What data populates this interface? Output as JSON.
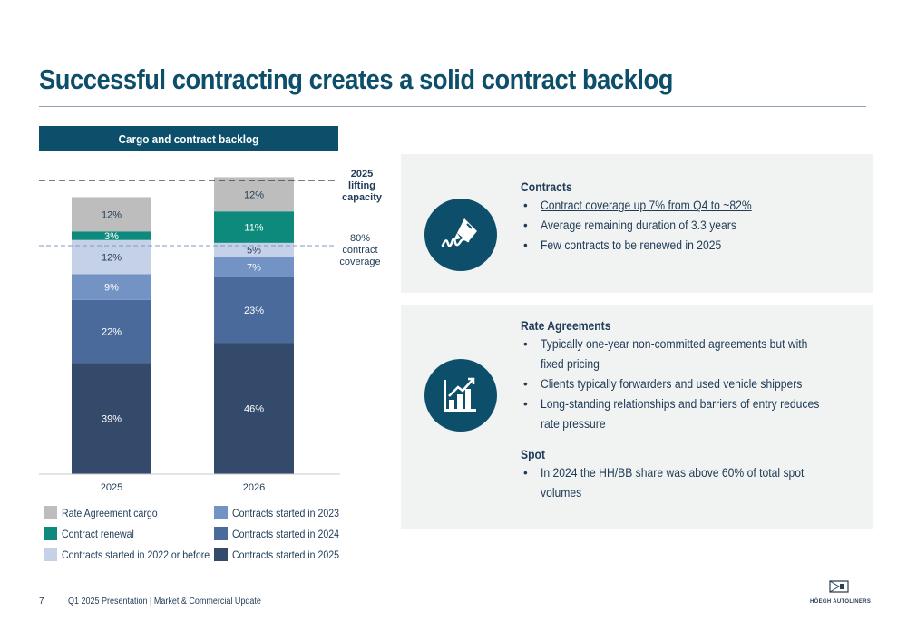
{
  "title": "Successful contracting creates a solid contract backlog",
  "chart_header": "Cargo and contract backlog",
  "annotations": {
    "lifting": [
      "2025",
      "lifting",
      "capacity"
    ],
    "coverage": [
      "80%",
      "contract",
      "coverage"
    ]
  },
  "chart_data": {
    "type": "bar",
    "stacked": true,
    "categories": [
      "2025",
      "2026"
    ],
    "series": [
      {
        "name": "Contracts started in 2025",
        "color": "#344a6b",
        "values": [
          39,
          46
        ]
      },
      {
        "name": "Contracts started in 2024",
        "color": "#4a6a9c",
        "values": [
          22,
          23
        ]
      },
      {
        "name": "Contracts started in 2023",
        "color": "#7393c4",
        "values": [
          9,
          7
        ]
      },
      {
        "name": "Contracts started in 2022 or before",
        "color": "#c4d1e6",
        "values": [
          12,
          5
        ]
      },
      {
        "name": "Contract renewal",
        "color": "#0d8a7c",
        "values": [
          3,
          11
        ]
      },
      {
        "name": "Rate Agreement cargo",
        "color": "#bdbdbd",
        "values": [
          12,
          12
        ]
      }
    ],
    "reference_lines": [
      {
        "label": "2025 lifting capacity",
        "style": "dashed",
        "color": "#333333"
      },
      {
        "label": "80% contract coverage",
        "style": "dashed",
        "color": "#7f98c8"
      }
    ],
    "legend_position": "bottom"
  },
  "legend": [
    {
      "label": "Rate Agreement cargo",
      "color": "#bdbdbd"
    },
    {
      "label": "Contract renewal",
      "color": "#0d8a7c"
    },
    {
      "label": "Contracts started in 2022 or before",
      "color": "#c4d1e6"
    },
    {
      "label": "Contracts started in 2023",
      "color": "#7393c4"
    },
    {
      "label": "Contracts started in 2024",
      "color": "#4a6a9c"
    },
    {
      "label": "Contracts started in 2025",
      "color": "#344a6b"
    }
  ],
  "contracts": {
    "heading": "Contracts",
    "bullets": [
      "Contract coverage up 7% from Q4 to ~82%",
      "Average remaining duration of 3.3 years",
      "Few contracts to be renewed in 2025"
    ],
    "icon": "signature-pen-icon"
  },
  "rate_agreements": {
    "heading": "Rate Agreements",
    "bullets": [
      "Typically one-year non-committed agreements but with fixed pricing",
      "Clients typically forwarders and used vehicle shippers",
      "Long-standing relationships and barriers of entry reduces rate pressure"
    ],
    "icon": "bar-chart-growth-icon"
  },
  "spot": {
    "heading": "Spot",
    "bullets": [
      "In 2024 the HH/BB share was above 60% of total spot volumes"
    ]
  },
  "footer": {
    "page_number": "7",
    "text": "Q1 2025 Presentation | Market & Commercial Update",
    "logo_text": "HÖEGH AUTOLINERS"
  },
  "colors": {
    "brand": "#0d4f6b",
    "panel": "#f1f3f2"
  }
}
